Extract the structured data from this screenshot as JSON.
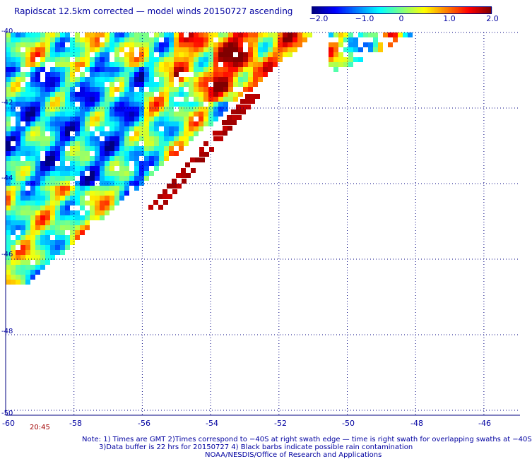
{
  "title": "Rapidscat 12.5km corrected — model winds 20150727 ascending",
  "colorbar": {
    "tick_labels": [
      "−2.0",
      "−1.0",
      "0",
      "1.0",
      "2.0"
    ],
    "min": -2.0,
    "max": 2.0,
    "colors": [
      "#000080",
      "#0000ff",
      "#0080ff",
      "#00ffff",
      "#80ff80",
      "#ffff00",
      "#ff8000",
      "#ff0000",
      "#800000"
    ]
  },
  "map": {
    "lat_labels": [
      "-40",
      "-42",
      "-44",
      "-46",
      "-48",
      "-50"
    ],
    "lon_labels": [
      "-60",
      "-58",
      "-56",
      "-54",
      "-52",
      "-50",
      "-48",
      "-46"
    ],
    "lat_values": [
      -40,
      -42,
      -44,
      -46,
      -48,
      -50
    ],
    "lon_values": [
      -60,
      -58,
      -56,
      -54,
      -52,
      -50,
      -48,
      -46
    ],
    "time_label": "20:45"
  },
  "notes": {
    "line1": "Note: 1) Times are GMT 2)Times correspond to −40S at right swath edge — time is right swath for overlapping swaths at −40S",
    "line2": "3)Data buffer is 22 hrs for 20150727 4) Black barbs indicate possible rain contamination",
    "line3": "NOAA/NESDIS/Office of Research and Applications"
  }
}
